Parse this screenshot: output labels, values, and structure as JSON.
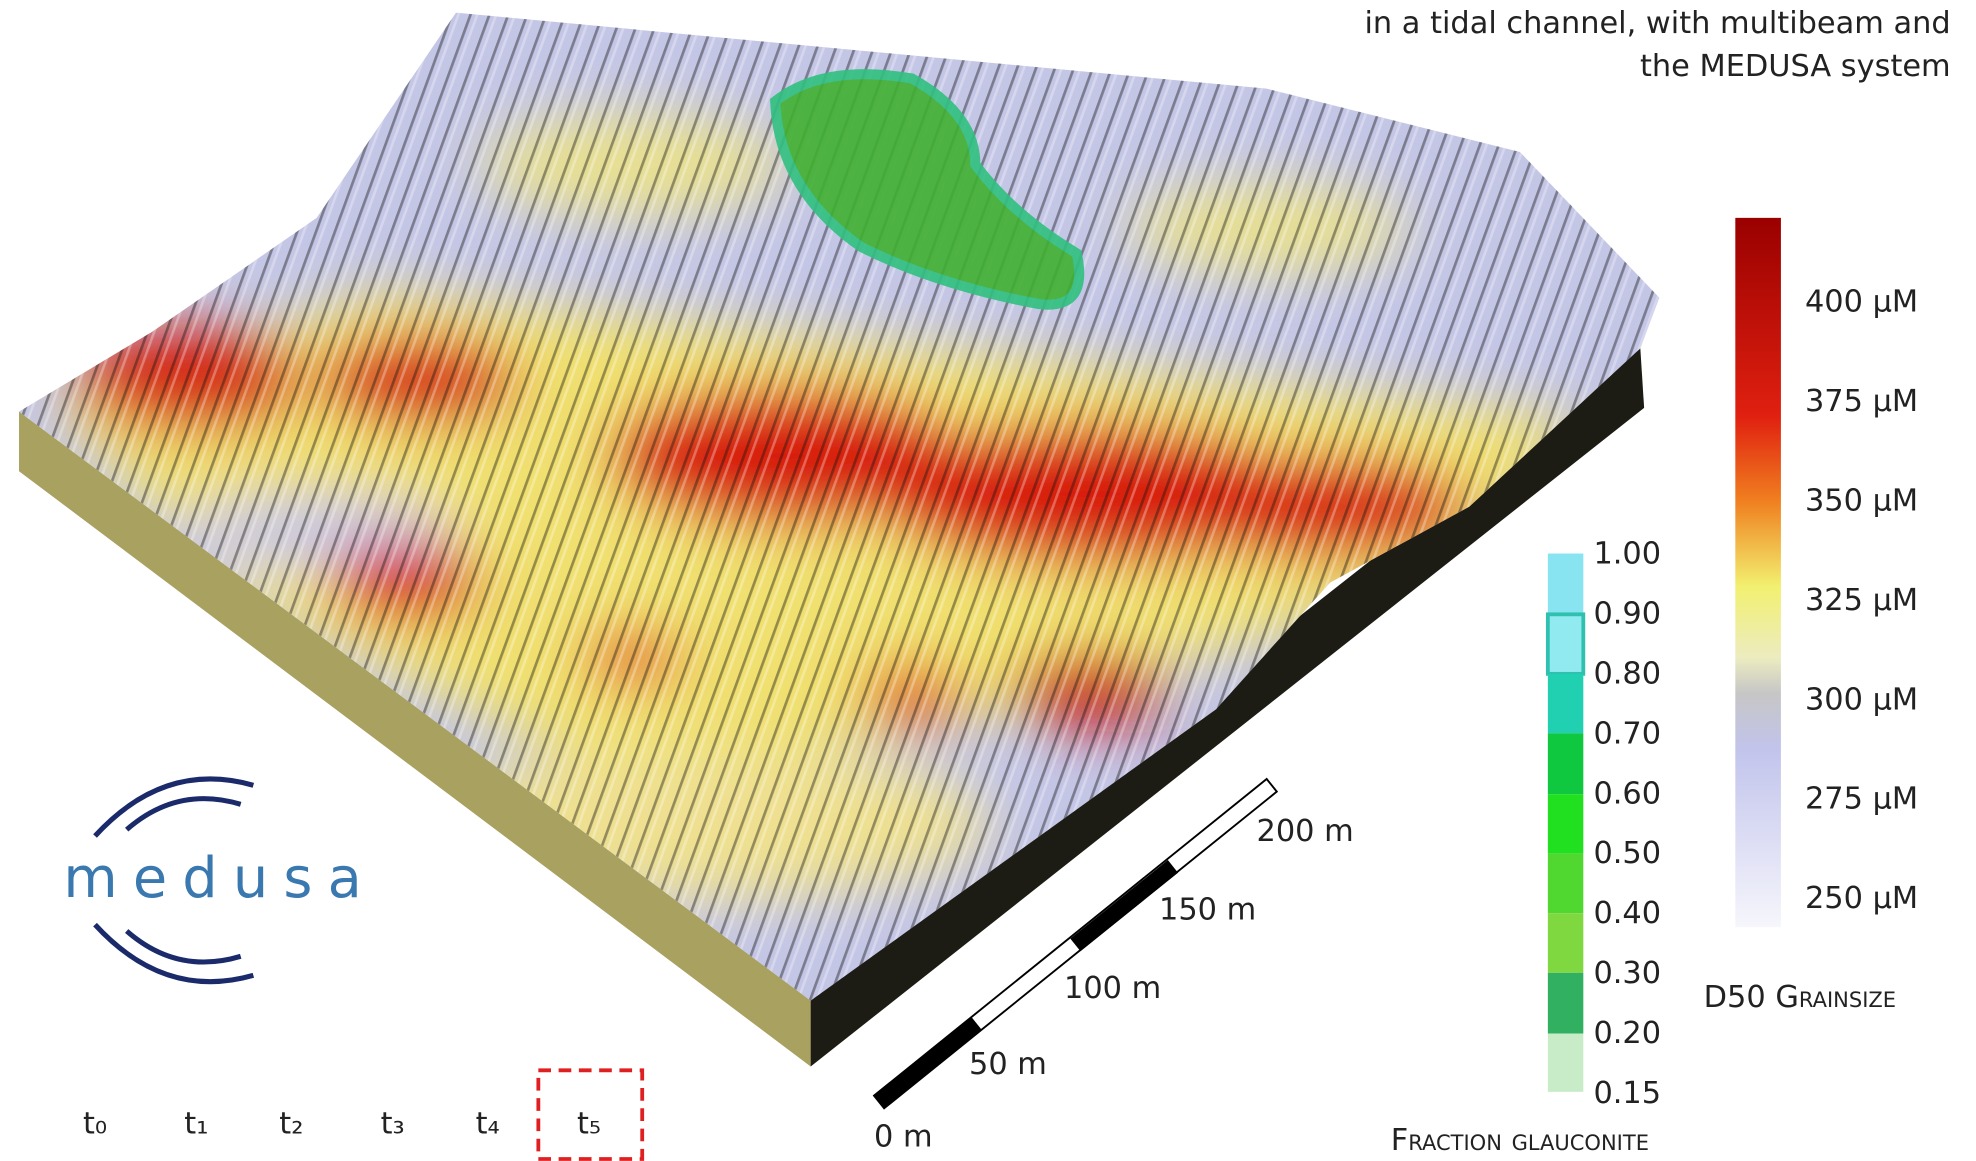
{
  "title_lines": [
    "in a tidal channel, with multibeam and",
    "the MEDUSA system"
  ],
  "logo": "medusa",
  "time_steps": [
    "t₀",
    "t₁",
    "t₂",
    "t₃",
    "t₄",
    "t₅"
  ],
  "scale_bar": [
    "0 m",
    "50 m",
    "100 m",
    "150 m",
    "200 m"
  ],
  "glauconite_legend": {
    "title": "Fraction glauconite",
    "labels": [
      "1.00",
      "0.90",
      "0.80",
      "0.70",
      "0.60",
      "0.50",
      "0.40",
      "0.30",
      "0.20",
      "0.15"
    ]
  },
  "grainsize_legend": {
    "title": "D50 Grainsize",
    "labels": [
      "400 µM",
      "375 µM",
      "350 µM",
      "325 µM",
      "300 µM",
      "275 µM",
      "250 µM"
    ]
  }
}
